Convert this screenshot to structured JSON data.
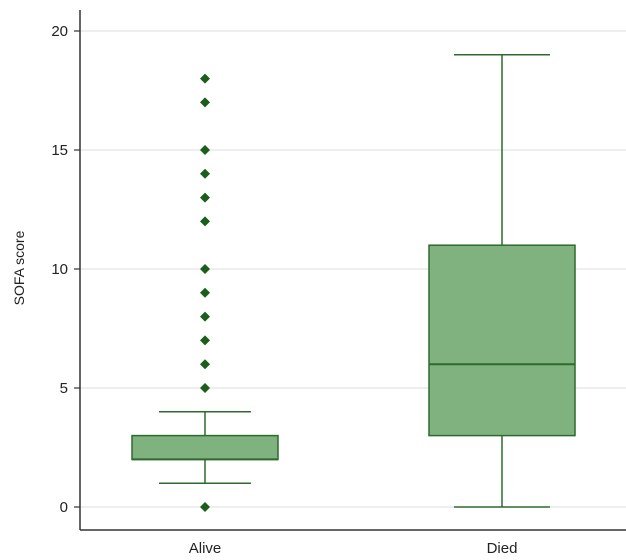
{
  "chart_data": {
    "type": "boxplot",
    "title": "",
    "xlabel": "",
    "ylabel": "SOFA score",
    "ylim": [
      -1,
      21
    ],
    "yticks": [
      0,
      5,
      10,
      15,
      20
    ],
    "grid": true,
    "colors": {
      "box_fill": "#80b27f",
      "box_stroke": "#2d6a2d",
      "outlier": "#1b5e1b",
      "grid": "#dddddd",
      "axis": "#333333"
    },
    "categories": [
      "Alive",
      "Died"
    ],
    "boxes": [
      {
        "category": "Alive",
        "min": 1,
        "q1": 2,
        "median": 2,
        "q3": 3,
        "max": 4,
        "outliers": [
          0,
          5,
          6,
          7,
          8,
          9,
          10,
          12,
          13,
          14,
          15,
          17,
          18
        ]
      },
      {
        "category": "Died",
        "min": 0,
        "q1": 3,
        "median": 6,
        "q3": 11,
        "max": 19,
        "outliers": []
      }
    ]
  }
}
